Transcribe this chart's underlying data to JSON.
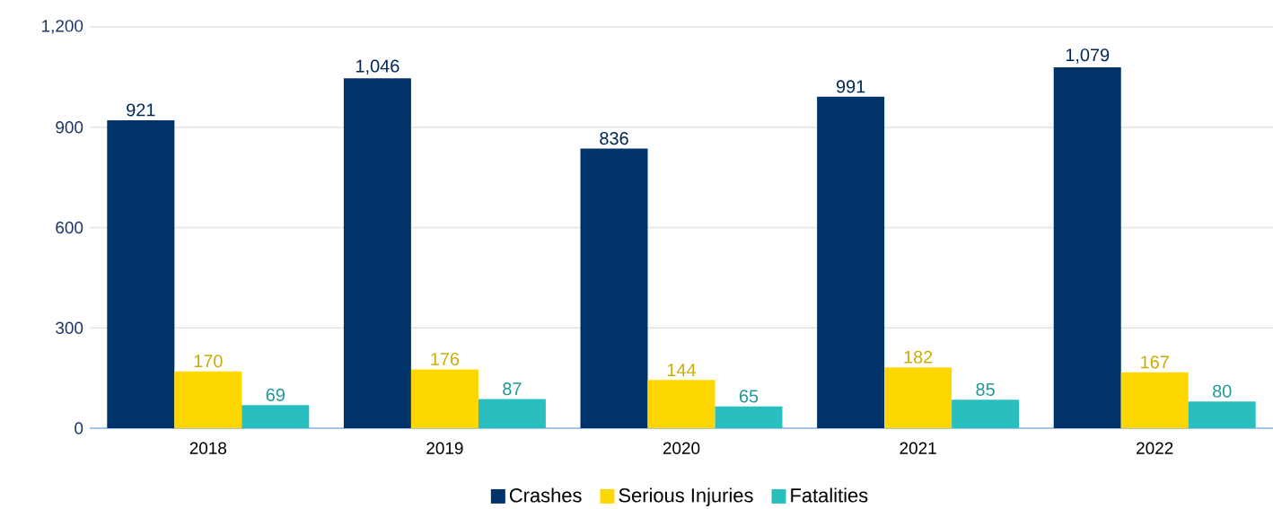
{
  "chart_data": {
    "type": "bar",
    "categories": [
      "2018",
      "2019",
      "2020",
      "2021",
      "2022"
    ],
    "series": [
      {
        "name": "Crashes",
        "color": "#00336a",
        "values": [
          921,
          1046,
          836,
          991,
          1079
        ],
        "value_labels": [
          "921",
          "1,046",
          "836",
          "991",
          "1,079"
        ]
      },
      {
        "name": "Serious Injuries",
        "color": "#ffd700",
        "values": [
          170,
          176,
          144,
          182,
          167
        ],
        "value_labels": [
          "170",
          "176",
          "144",
          "182",
          "167"
        ]
      },
      {
        "name": "Fatalities",
        "color": "#2abfbf",
        "values": [
          69,
          87,
          65,
          85,
          80
        ],
        "value_labels": [
          "69",
          "87",
          "65",
          "85",
          "80"
        ]
      }
    ],
    "ylim": [
      0,
      1200
    ],
    "yticks": [
      0,
      300,
      600,
      900,
      {
        "value": 1200,
        "label": "1,200"
      }
    ],
    "grid": "y",
    "legend": "bottom"
  }
}
